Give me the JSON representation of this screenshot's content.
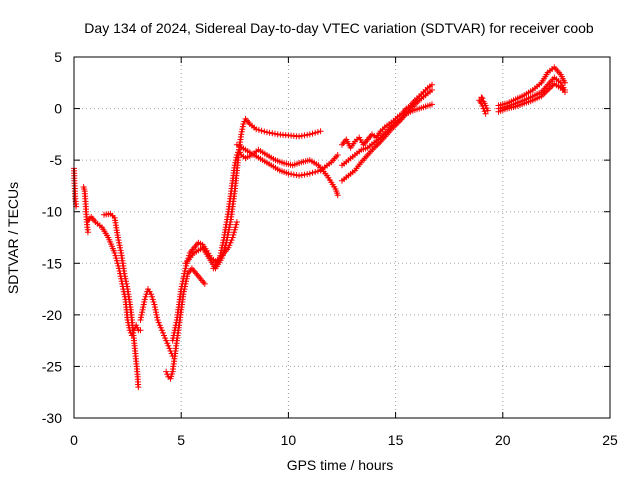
{
  "chart_data": {
    "type": "scatter",
    "title": "Day 134 of 2024, Sidereal Day-to-day VTEC variation (SDTVAR) for receiver coob",
    "xlabel": "GPS time / hours",
    "ylabel": "SDTVAR / TECUs",
    "xlim": [
      0,
      25
    ],
    "ylim": [
      -30,
      5
    ],
    "xticks": [
      "0",
      "5",
      "10",
      "15",
      "20",
      "25"
    ],
    "yticks": [
      "5",
      "0",
      "-5",
      "-10",
      "-15",
      "-20",
      "-25",
      "-30"
    ],
    "grid": true,
    "marker": "plus",
    "series_color": "#ff0000",
    "series": [
      {
        "x": [
          0.0,
          0.02,
          0.05,
          0.1
        ],
        "y": [
          -5.8,
          -7.0,
          -8.5,
          -9.5
        ]
      },
      {
        "x": [
          0.45,
          0.5,
          0.55,
          0.6,
          0.65
        ],
        "y": [
          -7.6,
          -8.0,
          -9.5,
          -11.0,
          -12.0
        ]
      },
      {
        "x": [
          0.6,
          0.8,
          1.0,
          1.3,
          1.6,
          1.9,
          2.1,
          2.2,
          2.4,
          2.5,
          2.6,
          2.7,
          2.8,
          2.9,
          3.0,
          3.1
        ],
        "y": [
          -11.0,
          -10.5,
          -11.0,
          -11.5,
          -12.5,
          -14.0,
          -15.5,
          -16.5,
          -18.5,
          -20.5,
          -21.5,
          -22.0,
          -21.5,
          -21.0,
          -21.5,
          -21.5
        ]
      },
      {
        "x": [
          1.4,
          1.7,
          1.9,
          2.05,
          2.2,
          2.35,
          2.5,
          2.65,
          2.75,
          2.85,
          2.95,
          3.0
        ],
        "y": [
          -10.3,
          -10.2,
          -10.6,
          -12.5,
          -14.0,
          -16.0,
          -17.5,
          -19.5,
          -21.5,
          -23.5,
          -25.5,
          -27.0
        ]
      },
      {
        "x": [
          3.1,
          3.3,
          3.45,
          3.6,
          3.75,
          3.9,
          4.1,
          4.3,
          4.5,
          4.6
        ],
        "y": [
          -20.5,
          -18.5,
          -17.5,
          -18.0,
          -19.0,
          -20.5,
          -21.5,
          -22.5,
          -23.5,
          -24.0
        ]
      },
      {
        "x": [
          4.3,
          4.4,
          4.5,
          4.6,
          4.7,
          4.8,
          4.9,
          5.0,
          5.1,
          5.2,
          5.3,
          5.5,
          5.7,
          5.9,
          6.1
        ],
        "y": [
          -25.5,
          -26.0,
          -26.2,
          -25.5,
          -24.0,
          -22.5,
          -21.0,
          -19.5,
          -18.0,
          -17.0,
          -16.0,
          -15.5,
          -16.0,
          -16.5,
          -17.0
        ]
      },
      {
        "x": [
          4.6,
          4.8,
          5.0,
          5.2,
          5.4,
          5.6,
          5.8,
          6.0,
          6.2,
          6.4,
          6.6,
          6.8,
          7.0,
          7.2,
          7.4,
          7.6
        ],
        "y": [
          -22.5,
          -20.5,
          -17.5,
          -15.5,
          -14.0,
          -13.5,
          -13.0,
          -13.2,
          -13.8,
          -14.5,
          -14.8,
          -14.5,
          -14.0,
          -13.5,
          -12.5,
          -11.0
        ]
      },
      {
        "x": [
          5.2,
          5.6,
          6.0,
          6.3,
          6.6,
          6.9,
          7.1,
          7.3,
          7.5,
          7.6,
          7.7,
          7.8,
          7.9,
          8.0,
          8.2,
          8.5,
          9.0,
          9.5,
          10.0,
          10.5,
          11.0,
          11.5
        ],
        "y": [
          -15.0,
          -14.0,
          -13.5,
          -14.5,
          -15.5,
          -14.5,
          -13.0,
          -11.0,
          -8.0,
          -6.0,
          -4.0,
          -2.5,
          -1.5,
          -1.0,
          -1.5,
          -2.0,
          -2.3,
          -2.5,
          -2.6,
          -2.7,
          -2.5,
          -2.2
        ]
      },
      {
        "x": [
          6.5,
          6.8,
          7.0,
          7.2,
          7.4,
          7.5,
          7.6,
          7.7,
          7.8,
          8.0,
          8.3,
          8.6,
          9.0,
          9.4,
          9.8,
          10.2,
          10.6,
          11.0,
          11.4,
          11.8,
          12.2,
          12.3
        ],
        "y": [
          -15.5,
          -14.5,
          -12.5,
          -10.0,
          -7.0,
          -5.5,
          -4.5,
          -4.0,
          -4.5,
          -4.8,
          -4.5,
          -4.0,
          -4.5,
          -5.0,
          -5.3,
          -5.5,
          -5.2,
          -5.0,
          -5.5,
          -6.5,
          -7.8,
          -8.4
        ]
      },
      {
        "x": [
          7.6,
          8.0,
          8.4,
          8.8,
          9.2,
          9.6,
          10.0,
          10.5,
          11.0,
          11.5,
          12.0,
          12.3
        ],
        "y": [
          -3.5,
          -4.0,
          -4.5,
          -5.0,
          -5.5,
          -6.0,
          -6.3,
          -6.5,
          -6.3,
          -6.0,
          -5.2,
          -4.5
        ]
      },
      {
        "x": [
          12.5,
          12.7,
          12.9,
          13.1,
          13.3,
          13.5,
          13.7,
          13.9,
          14.1,
          14.3,
          14.5,
          14.7,
          14.9,
          15.1,
          15.3,
          15.5,
          15.7,
          15.9,
          16.1,
          16.3,
          16.5,
          16.7
        ],
        "y": [
          -3.5,
          -3.0,
          -3.8,
          -3.2,
          -2.8,
          -3.5,
          -3.0,
          -2.5,
          -2.8,
          -2.2,
          -1.8,
          -1.5,
          -1.2,
          -0.8,
          -0.5,
          0.0,
          0.3,
          0.8,
          1.2,
          1.6,
          2.0,
          2.3
        ]
      },
      {
        "x": [
          12.5,
          12.8,
          13.1,
          13.4,
          13.7,
          14.0,
          14.3,
          14.6,
          14.9,
          15.2,
          15.5,
          15.8,
          16.1,
          16.4,
          16.7
        ],
        "y": [
          -7.0,
          -6.5,
          -6.0,
          -5.2,
          -4.5,
          -3.8,
          -3.2,
          -2.5,
          -1.8,
          -1.2,
          -0.5,
          0.2,
          0.8,
          1.3,
          1.8
        ]
      },
      {
        "x": [
          12.5,
          12.8,
          13.1,
          13.4,
          13.7,
          14.0,
          14.3,
          14.6,
          14.9,
          15.2,
          15.5,
          15.8,
          16.1,
          16.4,
          16.7
        ],
        "y": [
          -5.5,
          -5.0,
          -4.5,
          -4.0,
          -3.8,
          -3.3,
          -2.8,
          -2.2,
          -1.5,
          -1.0,
          -0.5,
          -0.2,
          0.0,
          0.2,
          0.4
        ]
      },
      {
        "x": [
          18.9,
          19.0,
          19.1,
          19.2
        ],
        "y": [
          0.8,
          0.5,
          0.0,
          -0.5
        ]
      },
      {
        "x": [
          19.0,
          19.05,
          19.1,
          19.2,
          19.3
        ],
        "y": [
          1.1,
          1.0,
          0.7,
          0.3,
          -0.2
        ]
      },
      {
        "x": [
          19.8,
          20.2,
          20.6,
          21.0,
          21.4,
          21.8,
          22.1,
          22.4,
          22.7,
          22.9
        ],
        "y": [
          0.3,
          0.5,
          0.9,
          1.3,
          1.8,
          2.5,
          3.5,
          4.0,
          3.3,
          2.5
        ]
      },
      {
        "x": [
          19.8,
          20.2,
          20.6,
          21.0,
          21.4,
          21.8,
          22.1,
          22.4,
          22.7,
          22.9
        ],
        "y": [
          0.0,
          0.2,
          0.5,
          0.8,
          1.2,
          1.6,
          2.3,
          3.0,
          2.5,
          1.8
        ]
      },
      {
        "x": [
          19.8,
          20.2,
          20.6,
          21.0,
          21.4,
          21.8,
          22.1,
          22.4,
          22.7,
          22.9
        ],
        "y": [
          -0.3,
          0.0,
          0.2,
          0.5,
          0.8,
          1.2,
          1.8,
          2.4,
          2.0,
          1.6
        ]
      }
    ]
  }
}
